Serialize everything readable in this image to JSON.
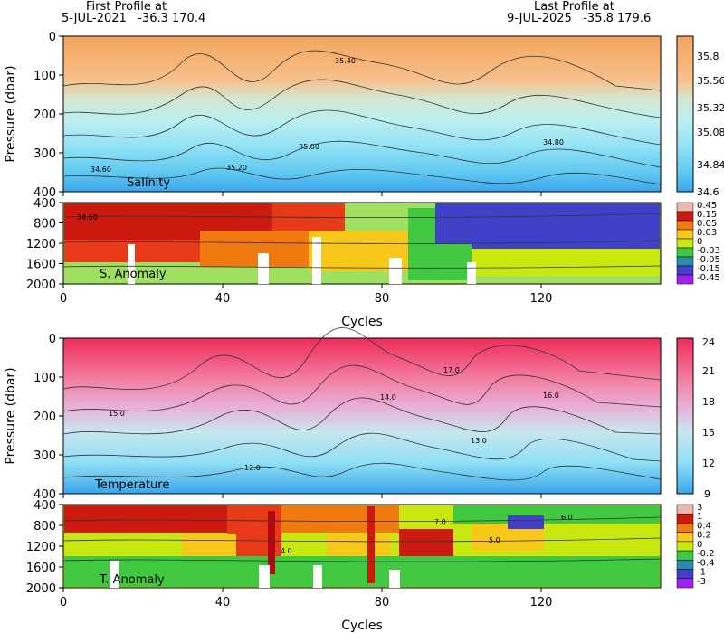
{
  "header": {
    "first_label": "First Profile at",
    "first_date": "5-JUL-2021",
    "first_coords": "-36.3 170.4",
    "last_label": "Last Profile at",
    "last_date": "9-JUL-2025",
    "last_coords": "-35.8 179.6"
  },
  "chart_data": [
    {
      "type": "heatmap",
      "name": "Salinity",
      "ylabel": "Pressure (dbar)",
      "xlim": [
        0,
        150
      ],
      "ylim": [
        0,
        400
      ],
      "y_ticks": [
        0,
        100,
        200,
        300,
        400
      ],
      "colorbar_labels": [
        "35.8",
        "35.56",
        "35.32",
        "35.08",
        "34.84",
        "34.6"
      ],
      "colorbar_values": [
        35.8,
        35.56,
        35.32,
        35.08,
        34.84,
        34.6
      ],
      "contour_labels": [
        "35.40",
        "35.20",
        "35.00",
        "34.80",
        "34.60"
      ],
      "colors": [
        "#f4a55e",
        "#f7c08a",
        "#d6e6d0",
        "#b9f0f2",
        "#8fe0f4",
        "#5ec8f0",
        "#3aa6ec"
      ]
    },
    {
      "type": "heatmap",
      "name": "S. Anomaly",
      "xlabel": "Cycles",
      "xlim": [
        0,
        150
      ],
      "x_ticks": [
        0,
        40,
        80,
        120
      ],
      "ylim": [
        400,
        2000
      ],
      "y_ticks": [
        400,
        800,
        1200,
        1600,
        2000
      ],
      "colorbar_labels": [
        "0.45",
        "0.15",
        "0.05",
        "0.03",
        "0",
        "-0.03",
        "-0.05",
        "-0.15",
        "-0.45"
      ],
      "contour_labels": [
        "34.60"
      ],
      "colors": [
        "#e8b8b0",
        "#cc1a10",
        "#f07a10",
        "#f7c81a",
        "#c8e810",
        "#40c840",
        "#2a8ab0",
        "#4040c8",
        "#a020f0"
      ]
    },
    {
      "type": "heatmap",
      "name": "Temperature",
      "ylabel": "Pressure (dbar)",
      "xlim": [
        0,
        150
      ],
      "ylim": [
        0,
        400
      ],
      "y_ticks": [
        0,
        100,
        200,
        300,
        400
      ],
      "colorbar_labels": [
        "24",
        "21",
        "18",
        "15",
        "12",
        "9"
      ],
      "colorbar_values": [
        24,
        21,
        18,
        15,
        12,
        9
      ],
      "contour_labels": [
        "17.0",
        "16.0",
        "15.0",
        "14.0",
        "13.0",
        "12.0"
      ],
      "colors": [
        "#ee2c58",
        "#f37aa0",
        "#e8b2d8",
        "#c8e6f0",
        "#8fe0f4",
        "#3aa6ec"
      ]
    },
    {
      "type": "heatmap",
      "name": "T. Anomaly",
      "xlabel": "Cycles",
      "xlim": [
        0,
        150
      ],
      "x_ticks": [
        0,
        40,
        80,
        120
      ],
      "ylim": [
        400,
        2000
      ],
      "y_ticks": [
        400,
        800,
        1200,
        1600,
        2000
      ],
      "colorbar_labels": [
        "3",
        "1",
        "0.4",
        "0.2",
        "0",
        "-0.2",
        "-0.4",
        "-1",
        "-3"
      ],
      "contour_labels": [
        "7.0",
        "6.0",
        "5.0",
        "4.0"
      ],
      "colors": [
        "#e8b8b0",
        "#cc1a10",
        "#f07a10",
        "#f7c81a",
        "#c8e810",
        "#40c840",
        "#2a8ab0",
        "#4040c8",
        "#a020f0"
      ]
    }
  ]
}
